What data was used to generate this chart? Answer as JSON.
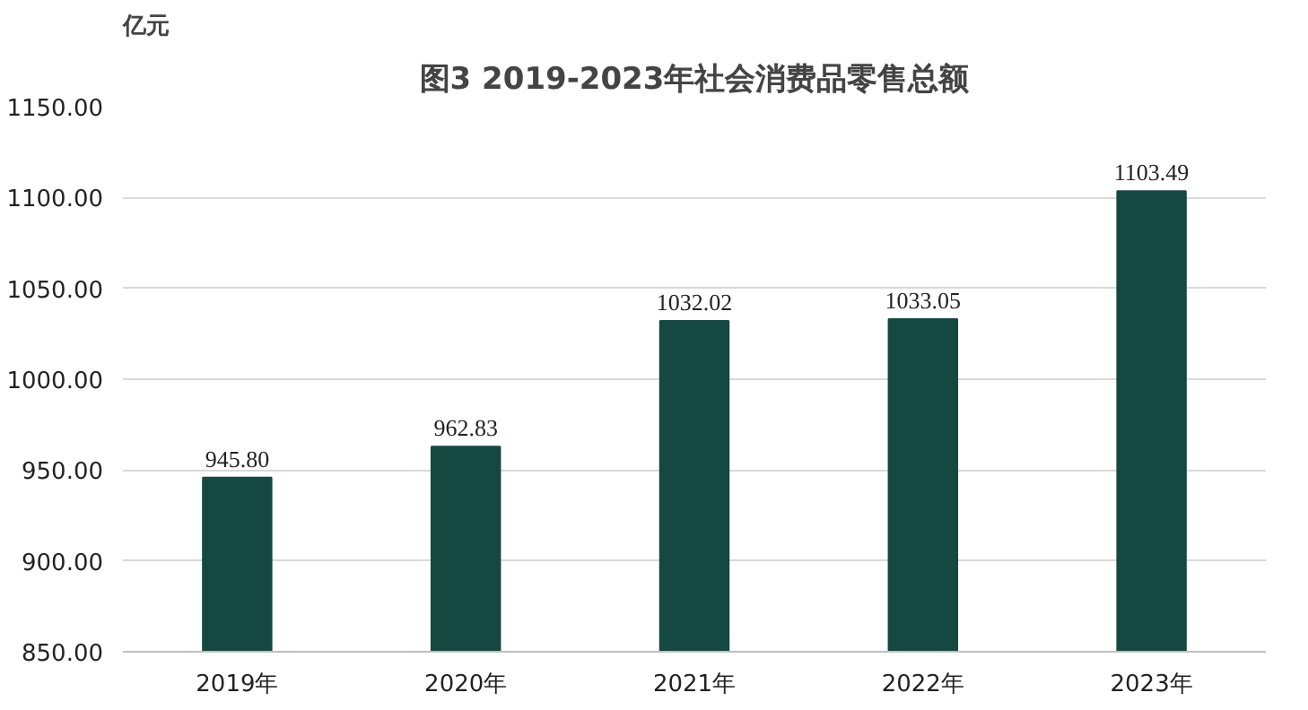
{
  "chart_data": {
    "type": "bar",
    "title": "图3 2019-2023年社会消费品零售总额",
    "ylabel": "亿元",
    "categories": [
      "2019年",
      "2020年",
      "2021年",
      "2022年",
      "2023年"
    ],
    "values": [
      945.8,
      962.83,
      1032.02,
      1033.05,
      1103.49
    ],
    "value_labels": [
      "945.80",
      "962.83",
      "1032.02",
      "1033.05",
      "1103.49"
    ],
    "color": "#154840",
    "ylim": [
      850,
      1150
    ],
    "yticks": [
      {
        "value": 850,
        "label": "850.00"
      },
      {
        "value": 900,
        "label": "900.00"
      },
      {
        "value": 950,
        "label": "950.00"
      },
      {
        "value": 1000,
        "label": "1000.00"
      },
      {
        "value": 1050,
        "label": "1050.00"
      },
      {
        "value": 1100,
        "label": "1100.00"
      },
      {
        "value": 1150,
        "label": "1150.00"
      }
    ],
    "grid": "y"
  }
}
